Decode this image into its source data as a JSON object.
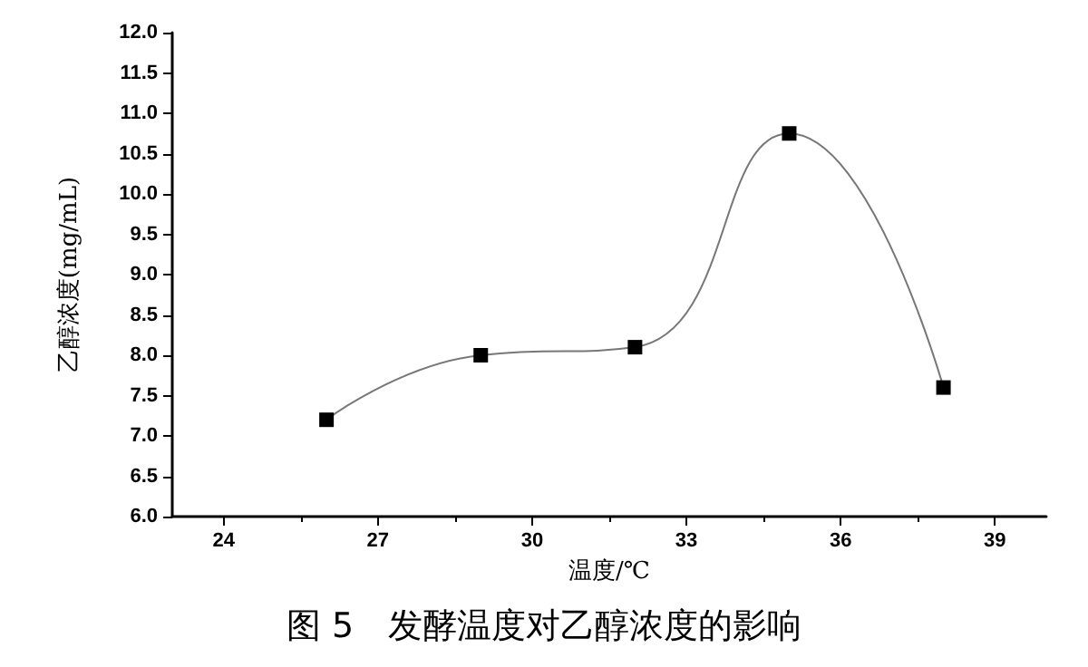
{
  "chart_data": {
    "type": "line",
    "title": "图 5　发酵温度对乙醇浓度的影响",
    "xlabel": "温度/℃",
    "ylabel": "乙醇浓度(mg/mL)",
    "x": [
      26,
      29,
      32,
      35,
      38
    ],
    "series": [
      {
        "color": "#000000",
        "values": [
          7.2,
          8.0,
          8.1,
          10.75,
          7.6
        ]
      }
    ],
    "xlim": [
      23,
      40
    ],
    "xticks": [
      24,
      27,
      30,
      33,
      36,
      39
    ],
    "ylim": [
      6,
      12
    ],
    "yticks": [
      {
        "value": 6,
        "label": "6.0"
      },
      {
        "value": 6.5,
        "label": "6.5"
      },
      {
        "value": 7,
        "label": "7.0"
      },
      {
        "value": 7.5,
        "label": "7.5"
      },
      {
        "value": 8,
        "label": "8.0"
      },
      {
        "value": 8.5,
        "label": "8.5"
      },
      {
        "value": 9,
        "label": "9.0"
      },
      {
        "value": 9.5,
        "label": "9.5"
      },
      {
        "value": 10,
        "label": "10.0"
      },
      {
        "value": 10.5,
        "label": "10.5"
      },
      {
        "value": 11,
        "label": "11.0"
      },
      {
        "value": 11.5,
        "label": "11.5"
      },
      {
        "value": 12,
        "label": "12.0"
      }
    ],
    "grid": false,
    "marker": "square",
    "line_style": "solid"
  }
}
